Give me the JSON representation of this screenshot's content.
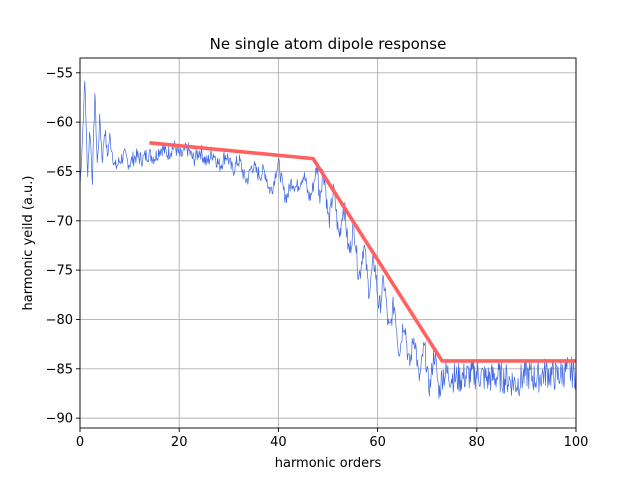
{
  "chart_data": {
    "type": "line",
    "title": "Ne single atom dipole response",
    "xlabel": "harmonic orders",
    "ylabel": "harmonic yeild (a.u.)",
    "xlim": [
      0,
      100
    ],
    "ylim": [
      -91,
      -53.5
    ],
    "xticks": [
      0,
      20,
      40,
      60,
      80,
      100
    ],
    "yticks": [
      -90,
      -85,
      -80,
      -75,
      -70,
      -65,
      -60,
      -55
    ],
    "xtick_labels": [
      "0",
      "20",
      "40",
      "60",
      "80",
      "100"
    ],
    "ytick_labels": [
      "−90",
      "−85",
      "−80",
      "−75",
      "−70",
      "−65",
      "−60",
      "−55"
    ],
    "grid": true,
    "series": [
      {
        "color": "#4169e1",
        "style": "thin noisy spectrum",
        "x": [
          0,
          0.5,
          1.0,
          1.5,
          2.0,
          2.5,
          3.0,
          3.5,
          4.0,
          4.5,
          5.0,
          5.5,
          6.0,
          7,
          8,
          9,
          10,
          12,
          14,
          16,
          18,
          20,
          22,
          24,
          26,
          28,
          30,
          32,
          34,
          36,
          38,
          40,
          42,
          44,
          46,
          48,
          50,
          52,
          54,
          56,
          58,
          60,
          62,
          64,
          66,
          68,
          70,
          72,
          74,
          76,
          78,
          80,
          82,
          84,
          86,
          88,
          90,
          92,
          94,
          96,
          98,
          100
        ],
        "y": [
          -66.5,
          -61.5,
          -55.5,
          -65.5,
          -60.5,
          -66,
          -57,
          -64.5,
          -59.5,
          -64,
          -60.5,
          -63.5,
          -61.5,
          -64.5,
          -64,
          -63.5,
          -64,
          -63.5,
          -63.5,
          -63,
          -62.8,
          -63,
          -63.2,
          -63.4,
          -63.6,
          -63.8,
          -64,
          -64.5,
          -65.5,
          -64.5,
          -66.5,
          -65,
          -67.5,
          -65.5,
          -67,
          -65.5,
          -68,
          -69.5,
          -71,
          -73.5,
          -75,
          -76.5,
          -79,
          -81,
          -82.5,
          -84,
          -85,
          -85.5,
          -85.5,
          -86,
          -85.7,
          -85.5,
          -86,
          -85.8,
          -86,
          -86.5,
          -85.5,
          -86,
          -85.3,
          -85.8,
          -85.2,
          -85.5
        ]
      },
      {
        "color": "#ff6161",
        "style": "thick fit",
        "x": [
          14,
          47,
          73,
          100
        ],
        "y": [
          -62.1,
          -63.7,
          -84.2,
          -84.2
        ]
      }
    ]
  }
}
